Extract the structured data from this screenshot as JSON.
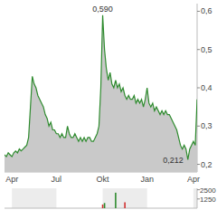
{
  "chart_data": [
    {
      "type": "area",
      "color": "#2e8b2e",
      "categories": [
        null,
        null,
        null,
        null,
        "Apr",
        null,
        null,
        null,
        null,
        null,
        null,
        null,
        null,
        null,
        null,
        null,
        null,
        null,
        null,
        null,
        null,
        null,
        null,
        null,
        null,
        null,
        null,
        null,
        "Jul",
        null,
        null,
        null,
        null,
        null,
        null,
        null,
        null,
        null,
        null,
        null,
        null,
        null,
        null,
        null,
        null,
        null,
        null,
        null,
        null,
        null,
        null,
        null,
        null,
        "Okt",
        null,
        null,
        null,
        null,
        null,
        null,
        null,
        null,
        null,
        null,
        null,
        null,
        null,
        null,
        null,
        null,
        null,
        null,
        null,
        null,
        null,
        null,
        null,
        "Jan",
        null,
        null,
        null,
        null,
        null,
        null,
        null,
        null,
        null,
        null,
        null,
        null,
        null,
        null,
        null,
        null,
        null,
        null,
        null,
        null,
        null,
        null,
        null,
        null,
        "Apr",
        null,
        null
      ],
      "values": [
        0.225,
        0.22,
        0.23,
        0.225,
        0.22,
        0.23,
        0.235,
        0.23,
        0.24,
        0.235,
        0.24,
        0.245,
        0.25,
        0.27,
        0.35,
        0.43,
        0.41,
        0.4,
        0.38,
        0.37,
        0.36,
        0.35,
        0.33,
        0.32,
        0.3,
        0.31,
        0.29,
        0.29,
        0.28,
        0.28,
        0.27,
        0.28,
        0.27,
        0.27,
        0.3,
        0.28,
        0.27,
        0.27,
        0.28,
        0.27,
        0.26,
        0.27,
        0.26,
        0.27,
        0.26,
        0.27,
        0.27,
        0.26,
        0.26,
        0.27,
        0.28,
        0.3,
        0.4,
        0.59,
        0.5,
        0.45,
        0.42,
        0.44,
        0.41,
        0.4,
        0.42,
        0.4,
        0.41,
        0.39,
        0.4,
        0.38,
        0.37,
        0.38,
        0.37,
        0.37,
        0.38,
        0.36,
        0.37,
        0.36,
        0.37,
        0.35,
        0.37,
        0.4,
        0.36,
        0.35,
        0.36,
        0.34,
        0.35,
        0.34,
        0.33,
        0.34,
        0.33,
        0.34,
        0.33,
        0.33,
        0.32,
        0.31,
        0.3,
        0.29,
        0.27,
        0.25,
        0.24,
        0.25,
        0.24,
        0.212,
        0.24,
        0.25,
        0.26,
        0.25,
        0.37
      ],
      "ylim": [
        0.18,
        0.62
      ],
      "yticks": [
        {
          "value": 0.2,
          "label": "0,2"
        },
        {
          "value": 0.3,
          "label": "0,3"
        },
        {
          "value": 0.4,
          "label": "0,4"
        },
        {
          "value": 0.5,
          "label": "0,5"
        },
        {
          "value": 0.6,
          "label": "0,6"
        }
      ],
      "annotations": [
        {
          "text": "0,590",
          "value": 0.59
        },
        {
          "text": "0,212",
          "value": 0.212
        }
      ]
    },
    {
      "type": "bar",
      "categories": [
        null,
        null,
        null,
        null,
        null,
        null,
        null,
        null,
        null,
        null,
        null,
        null,
        null,
        null,
        null,
        null,
        null,
        null,
        null,
        null,
        null,
        null,
        null,
        null,
        null,
        null,
        null,
        null,
        null,
        null,
        null,
        null,
        null,
        null,
        null,
        null,
        null,
        null,
        null,
        null,
        null,
        null,
        null,
        null,
        null,
        null,
        null,
        null,
        null,
        null,
        null,
        null,
        null,
        null,
        null,
        null,
        null,
        null,
        null,
        null,
        null,
        null,
        null,
        null,
        null,
        null,
        null,
        null,
        null,
        null,
        null,
        null,
        null,
        null,
        null,
        null,
        null,
        null,
        null,
        null,
        null,
        null,
        null,
        null,
        null,
        null,
        null,
        null,
        null,
        null,
        null,
        null,
        null,
        null,
        null,
        null,
        null,
        null,
        null,
        null,
        null,
        null,
        null,
        null,
        null
      ],
      "values": [
        0,
        0,
        0,
        0,
        0,
        0,
        0,
        0,
        0,
        0,
        0,
        0,
        0,
        0,
        0,
        0,
        0,
        0,
        0,
        0,
        0,
        0,
        0,
        0,
        0,
        0,
        0,
        0,
        0,
        0,
        0,
        0,
        0,
        0,
        0,
        0,
        0,
        0,
        0,
        0,
        0,
        0,
        0,
        0,
        0,
        0,
        0,
        0,
        0,
        0,
        0,
        0,
        0,
        500,
        700,
        0,
        0,
        0,
        0,
        0,
        2100,
        0,
        0,
        0,
        0,
        800,
        0,
        0,
        0,
        0,
        0,
        0,
        0,
        0,
        0,
        0,
        0,
        0,
        0,
        0,
        0,
        0,
        0,
        0,
        0,
        0,
        0,
        0,
        0,
        0,
        0,
        0,
        0,
        0,
        0,
        0,
        0,
        0,
        0,
        0,
        0,
        0,
        0,
        0,
        0
      ],
      "colors": [
        "#2e8b2e",
        "#2e8b2e",
        "#2e8b2e",
        "#2e8b2e",
        "#2e8b2e",
        "#2e8b2e",
        "#2e8b2e",
        "#2e8b2e",
        "#2e8b2e",
        "#2e8b2e",
        "#2e8b2e",
        "#2e8b2e",
        "#2e8b2e",
        "#2e8b2e",
        "#2e8b2e",
        "#2e8b2e",
        "#2e8b2e",
        "#2e8b2e",
        "#2e8b2e",
        "#2e8b2e",
        "#2e8b2e",
        "#2e8b2e",
        "#2e8b2e",
        "#2e8b2e",
        "#2e8b2e",
        "#2e8b2e",
        "#2e8b2e",
        "#2e8b2e",
        "#2e8b2e",
        "#2e8b2e",
        "#2e8b2e",
        "#2e8b2e",
        "#2e8b2e",
        "#2e8b2e",
        "#2e8b2e",
        "#2e8b2e",
        "#2e8b2e",
        "#2e8b2e",
        "#2e8b2e",
        "#2e8b2e",
        "#2e8b2e",
        "#2e8b2e",
        "#2e8b2e",
        "#2e8b2e",
        "#2e8b2e",
        "#2e8b2e",
        "#2e8b2e",
        "#2e8b2e",
        "#2e8b2e",
        "#2e8b2e",
        "#2e8b2e",
        "#2e8b2e",
        "#2e8b2e",
        "#d03030",
        "#2e8b2e",
        "#2e8b2e",
        "#2e8b2e",
        "#2e8b2e",
        "#2e8b2e",
        "#2e8b2e",
        "#2e8b2e",
        "#2e8b2e",
        "#2e8b2e",
        "#2e8b2e",
        "#2e8b2e",
        "#d03030",
        "#2e8b2e",
        "#2e8b2e",
        "#2e8b2e",
        "#2e8b2e",
        "#2e8b2e",
        "#2e8b2e",
        "#2e8b2e",
        "#2e8b2e",
        "#2e8b2e",
        "#2e8b2e",
        "#2e8b2e",
        "#2e8b2e",
        "#2e8b2e",
        "#2e8b2e",
        "#2e8b2e",
        "#2e8b2e",
        "#2e8b2e",
        "#2e8b2e",
        "#2e8b2e",
        "#2e8b2e",
        "#2e8b2e",
        "#2e8b2e",
        "#2e8b2e",
        "#2e8b2e",
        "#2e8b2e",
        "#2e8b2e",
        "#2e8b2e",
        "#2e8b2e",
        "#2e8b2e",
        "#2e8b2e",
        "#2e8b2e",
        "#2e8b2e",
        "#2e8b2e",
        "#2e8b2e",
        "#2e8b2e",
        "#2e8b2e",
        "#2e8b2e",
        "#2e8b2e",
        "#2e8b2e"
      ],
      "ylim": [
        0,
        2700
      ],
      "yticks": [
        1250,
        2500
      ]
    }
  ]
}
